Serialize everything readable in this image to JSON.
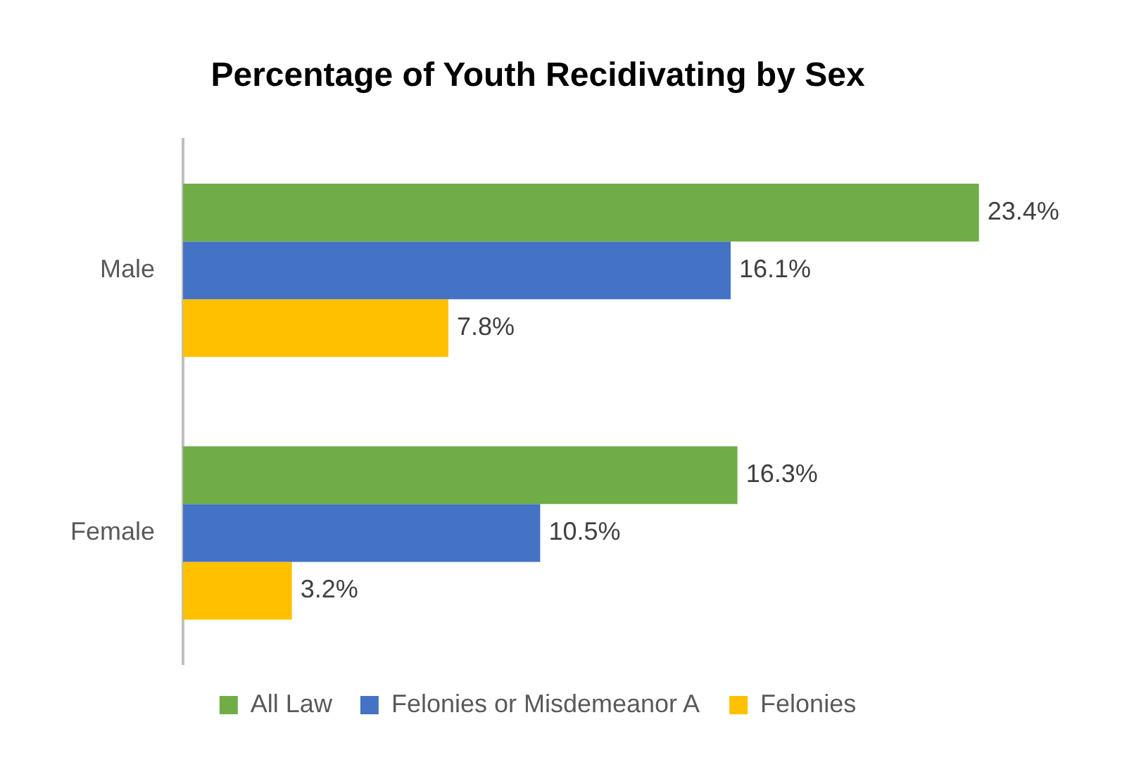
{
  "chart_data": {
    "type": "bar",
    "orientation": "horizontal",
    "title": "Percentage of Youth Recidivating by Sex",
    "categories": [
      "Male",
      "Female"
    ],
    "series": [
      {
        "name": "All Law",
        "color": "#70ad47",
        "values": [
          23.4,
          16.3
        ],
        "value_labels": [
          "23.4%",
          "16.3%"
        ]
      },
      {
        "name": "Felonies or Misdemeanor A",
        "color": "#4472c4",
        "values": [
          16.1,
          10.5
        ],
        "value_labels": [
          "16.1%",
          "10.5%"
        ]
      },
      {
        "name": "Felonies",
        "color": "#ffc000",
        "values": [
          7.8,
          3.2
        ],
        "value_labels": [
          "7.8%",
          "3.2%"
        ]
      }
    ],
    "legend": "bottom"
  }
}
